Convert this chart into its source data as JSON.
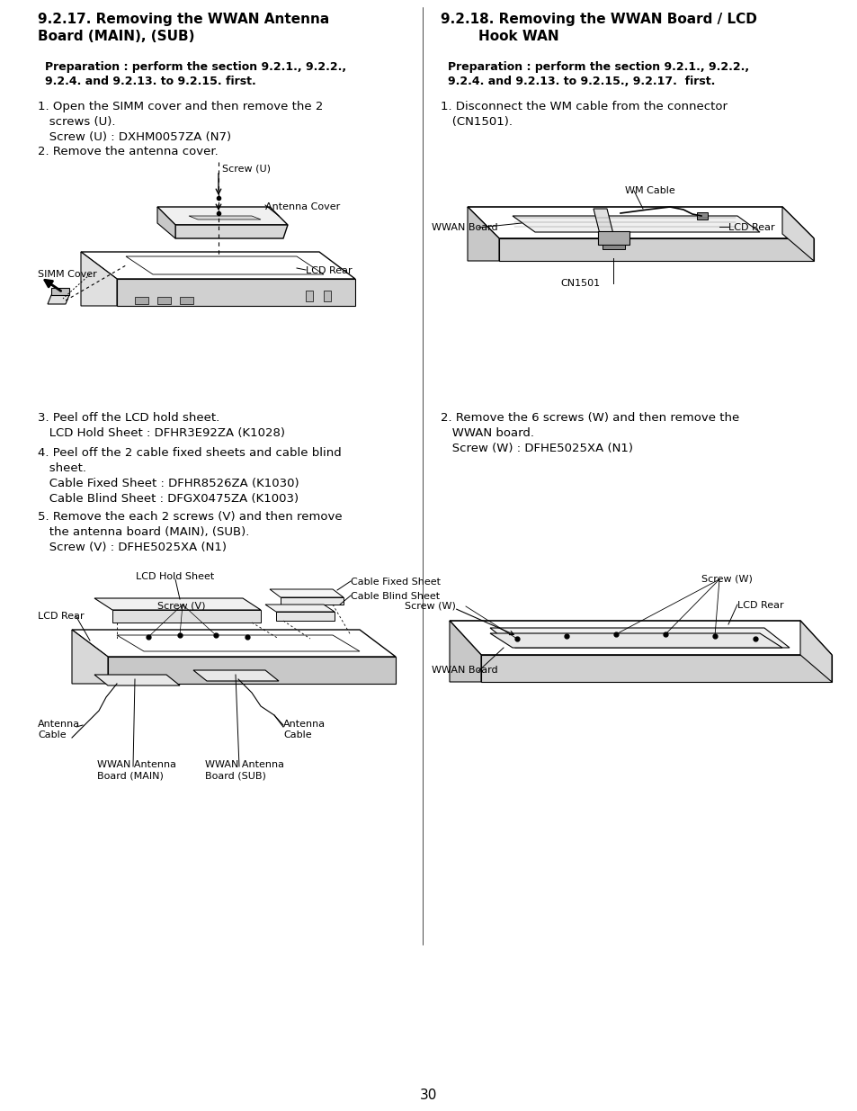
{
  "bg_color": "#ffffff",
  "page_number": "30",
  "figsize": [
    9.54,
    12.35
  ],
  "dpi": 100,
  "left_title": "9.2.17. Removing the WWAN Antenna\nBoard (MAIN), (SUB)",
  "left_prep": "Preparation : perform the section 9.2.1., 9.2.2.,\n9.2.4. and 9.2.13. to 9.2.15. first.",
  "left_step1": "1. Open the SIMM cover and then remove the 2\n   screws (U).\n   Screw (U) : DXHM0057ZA (N7)",
  "left_step2": "2. Remove the antenna cover.",
  "left_step3": "3. Peel off the LCD hold sheet.\n   LCD Hold Sheet : DFHR3E92ZA (K1028)",
  "left_step4": "4. Peel off the 2 cable fixed sheets and cable blind\n   sheet.\n   Cable Fixed Sheet : DFHR8526ZA (K1030)\n   Cable Blind Sheet : DFGX0475ZA (K1003)",
  "left_step5": "5. Remove the each 2 screws (V) and then remove\n   the antenna board (MAIN), (SUB).\n   Screw (V) : DFHE5025XA (N1)",
  "right_title": "9.2.18. Removing the WWAN Board / LCD\n        Hook WAN",
  "right_prep": "Preparation : perform the section 9.2.1., 9.2.2.,\n9.2.4. and 9.2.13. to 9.2.15., 9.2.17.  first.",
  "right_step1": "1. Disconnect the WM cable from the connector\n   (CN1501).",
  "right_step2": "2. Remove the 6 screws (W) and then remove the\n   WWAN board.\n   Screw (W) : DFHE5025XA (N1)"
}
